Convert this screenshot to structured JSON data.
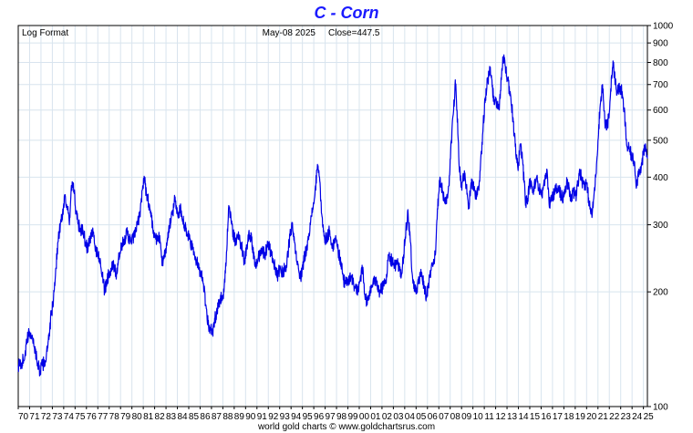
{
  "chart_data": {
    "type": "line",
    "title": "C  -  Corn",
    "subtitle_left": "Log Format",
    "date_label": "May-08  2025",
    "close_label": "Close=447.5",
    "footer": "world gold charts © www.goldchartsrus.com",
    "y_scale": "log",
    "ylim": [
      100,
      1000
    ],
    "y_ticks": [
      100,
      200,
      300,
      400,
      500,
      600,
      700,
      800,
      900,
      1000
    ],
    "x_range": [
      1970.0,
      2025.35
    ],
    "x_tick_labels": [
      "70",
      "71",
      "72",
      "73",
      "74",
      "75",
      "76",
      "77",
      "78",
      "79",
      "80",
      "81",
      "82",
      "83",
      "84",
      "85",
      "86",
      "87",
      "88",
      "89",
      "90",
      "91",
      "92",
      "93",
      "94",
      "95",
      "96",
      "97",
      "98",
      "99",
      "00",
      "01",
      "02",
      "03",
      "04",
      "05",
      "06",
      "07",
      "08",
      "09",
      "10",
      "11",
      "12",
      "13",
      "14",
      "15",
      "16",
      "17",
      "18",
      "19",
      "20",
      "21",
      "22",
      "23",
      "24",
      "25"
    ],
    "grid": true,
    "colors": {
      "title": "#1a1aff",
      "line": "#0000e6",
      "grid": "#d8e4ee",
      "axis": "#000000"
    },
    "series": [
      {
        "points": [
          [
            1970.0,
            128
          ],
          [
            1970.3,
            130
          ],
          [
            1970.6,
            137
          ],
          [
            1970.8,
            150
          ],
          [
            1971.0,
            157
          ],
          [
            1971.25,
            152
          ],
          [
            1971.5,
            140
          ],
          [
            1971.7,
            130
          ],
          [
            1971.9,
            124
          ],
          [
            1972.1,
            128
          ],
          [
            1972.4,
            132
          ],
          [
            1972.7,
            150
          ],
          [
            1972.9,
            175
          ],
          [
            1973.1,
            190
          ],
          [
            1973.3,
            230
          ],
          [
            1973.5,
            270
          ],
          [
            1973.7,
            300
          ],
          [
            1973.9,
            320
          ],
          [
            1974.1,
            360
          ],
          [
            1974.35,
            330
          ],
          [
            1974.5,
            300
          ],
          [
            1974.7,
            380
          ],
          [
            1974.9,
            370
          ],
          [
            1975.1,
            320
          ],
          [
            1975.3,
            300
          ],
          [
            1975.5,
            290
          ],
          [
            1975.7,
            290
          ],
          [
            1975.9,
            270
          ],
          [
            1976.1,
            260
          ],
          [
            1976.3,
            275
          ],
          [
            1976.6,
            285
          ],
          [
            1976.8,
            260
          ],
          [
            1977.0,
            250
          ],
          [
            1977.2,
            245
          ],
          [
            1977.4,
            220
          ],
          [
            1977.6,
            200
          ],
          [
            1977.8,
            215
          ],
          [
            1978.0,
            225
          ],
          [
            1978.2,
            230
          ],
          [
            1978.4,
            235
          ],
          [
            1978.6,
            220
          ],
          [
            1978.8,
            240
          ],
          [
            1979.0,
            255
          ],
          [
            1979.3,
            275
          ],
          [
            1979.6,
            285
          ],
          [
            1979.9,
            270
          ],
          [
            1980.2,
            280
          ],
          [
            1980.5,
            300
          ],
          [
            1980.7,
            320
          ],
          [
            1980.9,
            370
          ],
          [
            1981.1,
            395
          ],
          [
            1981.3,
            360
          ],
          [
            1981.6,
            330
          ],
          [
            1981.9,
            290
          ],
          [
            1982.1,
            275
          ],
          [
            1982.3,
            280
          ],
          [
            1982.5,
            270
          ],
          [
            1982.7,
            235
          ],
          [
            1982.9,
            250
          ],
          [
            1983.1,
            270
          ],
          [
            1983.3,
            295
          ],
          [
            1983.6,
            325
          ],
          [
            1983.8,
            355
          ],
          [
            1984.0,
            320
          ],
          [
            1984.3,
            330
          ],
          [
            1984.6,
            300
          ],
          [
            1984.9,
            280
          ],
          [
            1985.1,
            275
          ],
          [
            1985.3,
            260
          ],
          [
            1985.6,
            245
          ],
          [
            1985.9,
            230
          ],
          [
            1986.1,
            225
          ],
          [
            1986.3,
            210
          ],
          [
            1986.5,
            185
          ],
          [
            1986.7,
            165
          ],
          [
            1986.9,
            160
          ],
          [
            1987.1,
            155
          ],
          [
            1987.3,
            170
          ],
          [
            1987.6,
            185
          ],
          [
            1987.9,
            195
          ],
          [
            1988.1,
            200
          ],
          [
            1988.3,
            240
          ],
          [
            1988.5,
            330
          ],
          [
            1988.7,
            320
          ],
          [
            1988.9,
            285
          ],
          [
            1989.1,
            270
          ],
          [
            1989.4,
            280
          ],
          [
            1989.7,
            260
          ],
          [
            1989.9,
            240
          ],
          [
            1990.1,
            260
          ],
          [
            1990.3,
            290
          ],
          [
            1990.6,
            265
          ],
          [
            1990.8,
            235
          ],
          [
            1991.1,
            245
          ],
          [
            1991.4,
            260
          ],
          [
            1991.7,
            250
          ],
          [
            1992.0,
            270
          ],
          [
            1992.2,
            255
          ],
          [
            1992.4,
            245
          ],
          [
            1992.6,
            230
          ],
          [
            1992.8,
            220
          ],
          [
            1993.0,
            230
          ],
          [
            1993.3,
            225
          ],
          [
            1993.6,
            235
          ],
          [
            1993.9,
            280
          ],
          [
            1994.1,
            295
          ],
          [
            1994.3,
            270
          ],
          [
            1994.5,
            240
          ],
          [
            1994.7,
            225
          ],
          [
            1994.9,
            220
          ],
          [
            1995.1,
            240
          ],
          [
            1995.4,
            265
          ],
          [
            1995.7,
            300
          ],
          [
            1995.9,
            330
          ],
          [
            1996.1,
            360
          ],
          [
            1996.3,
            420
          ],
          [
            1996.5,
            400
          ],
          [
            1996.7,
            320
          ],
          [
            1996.9,
            280
          ],
          [
            1997.1,
            275
          ],
          [
            1997.4,
            290
          ],
          [
            1997.6,
            260
          ],
          [
            1997.9,
            275
          ],
          [
            1998.1,
            260
          ],
          [
            1998.4,
            240
          ],
          [
            1998.6,
            215
          ],
          [
            1998.8,
            210
          ],
          [
            1999.0,
            215
          ],
          [
            1999.3,
            220
          ],
          [
            1999.6,
            205
          ],
          [
            1999.8,
            200
          ],
          [
            2000.0,
            210
          ],
          [
            2000.3,
            230
          ],
          [
            2000.5,
            195
          ],
          [
            2000.7,
            185
          ],
          [
            2000.9,
            200
          ],
          [
            2001.2,
            210
          ],
          [
            2001.5,
            215
          ],
          [
            2001.8,
            200
          ],
          [
            2002.0,
            205
          ],
          [
            2002.3,
            210
          ],
          [
            2002.6,
            250
          ],
          [
            2002.9,
            240
          ],
          [
            2003.1,
            235
          ],
          [
            2003.4,
            235
          ],
          [
            2003.7,
            220
          ],
          [
            2003.9,
            250
          ],
          [
            2004.1,
            290
          ],
          [
            2004.3,
            320
          ],
          [
            2004.5,
            270
          ],
          [
            2004.7,
            215
          ],
          [
            2004.9,
            200
          ],
          [
            2005.2,
            210
          ],
          [
            2005.5,
            225
          ],
          [
            2005.7,
            205
          ],
          [
            2005.9,
            195
          ],
          [
            2006.1,
            210
          ],
          [
            2006.4,
            235
          ],
          [
            2006.7,
            250
          ],
          [
            2006.9,
            330
          ],
          [
            2007.1,
            400
          ],
          [
            2007.3,
            370
          ],
          [
            2007.6,
            340
          ],
          [
            2007.9,
            380
          ],
          [
            2008.1,
            500
          ],
          [
            2008.3,
            600
          ],
          [
            2008.45,
            720
          ],
          [
            2008.6,
            600
          ],
          [
            2008.8,
            420
          ],
          [
            2009.0,
            380
          ],
          [
            2009.3,
            410
          ],
          [
            2009.6,
            330
          ],
          [
            2009.9,
            390
          ],
          [
            2010.1,
            370
          ],
          [
            2010.3,
            350
          ],
          [
            2010.6,
            390
          ],
          [
            2010.9,
            550
          ],
          [
            2011.1,
            650
          ],
          [
            2011.3,
            720
          ],
          [
            2011.5,
            760
          ],
          [
            2011.7,
            690
          ],
          [
            2011.9,
            620
          ],
          [
            2012.1,
            630
          ],
          [
            2012.3,
            600
          ],
          [
            2012.5,
            720
          ],
          [
            2012.65,
            820
          ],
          [
            2012.85,
            780
          ],
          [
            2013.05,
            720
          ],
          [
            2013.3,
            660
          ],
          [
            2013.55,
            560
          ],
          [
            2013.8,
            450
          ],
          [
            2014.0,
            430
          ],
          [
            2014.2,
            490
          ],
          [
            2014.4,
            430
          ],
          [
            2014.6,
            350
          ],
          [
            2014.8,
            340
          ],
          [
            2015.0,
            390
          ],
          [
            2015.3,
            370
          ],
          [
            2015.6,
            400
          ],
          [
            2015.8,
            375
          ],
          [
            2016.0,
            360
          ],
          [
            2016.3,
            380
          ],
          [
            2016.5,
            420
          ],
          [
            2016.7,
            340
          ],
          [
            2016.9,
            350
          ],
          [
            2017.2,
            365
          ],
          [
            2017.5,
            380
          ],
          [
            2017.8,
            355
          ],
          [
            2018.0,
            355
          ],
          [
            2018.3,
            390
          ],
          [
            2018.6,
            350
          ],
          [
            2018.9,
            365
          ],
          [
            2019.1,
            360
          ],
          [
            2019.4,
            420
          ],
          [
            2019.6,
            390
          ],
          [
            2019.8,
            385
          ],
          [
            2020.0,
            385
          ],
          [
            2020.3,
            330
          ],
          [
            2020.5,
            320
          ],
          [
            2020.8,
            400
          ],
          [
            2021.0,
            500
          ],
          [
            2021.2,
            620
          ],
          [
            2021.4,
            700
          ],
          [
            2021.6,
            560
          ],
          [
            2021.8,
            540
          ],
          [
            2022.0,
            590
          ],
          [
            2022.2,
            740
          ],
          [
            2022.35,
            790
          ],
          [
            2022.6,
            680
          ],
          [
            2022.85,
            680
          ],
          [
            2023.05,
            680
          ],
          [
            2023.3,
            600
          ],
          [
            2023.55,
            480
          ],
          [
            2023.8,
            470
          ],
          [
            2024.0,
            450
          ],
          [
            2024.2,
            440
          ],
          [
            2024.4,
            380
          ],
          [
            2024.6,
            420
          ],
          [
            2024.8,
            420
          ],
          [
            2025.0,
            460
          ],
          [
            2025.2,
            480
          ],
          [
            2025.35,
            447.5
          ]
        ]
      }
    ]
  }
}
